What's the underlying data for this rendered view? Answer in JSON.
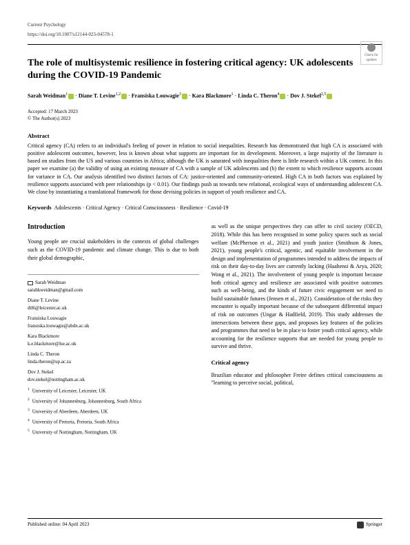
{
  "meta": {
    "journal": "Current Psychology",
    "doi": "https://doi.org/10.1007/s12144-023-04578-1"
  },
  "checkUpdates": {
    "label": "Check for updates"
  },
  "title": "The role of multisystemic resilience in fostering critical agency: UK adolescents during the COVID-19 Pandemic",
  "authors": {
    "a1": {
      "name": "Sarah Weidman",
      "sup": "1"
    },
    "a2": {
      "name": "Diane T. Levine",
      "sup": "1,2"
    },
    "a3": {
      "name": "Fransiska Louwagie",
      "sup": "3"
    },
    "a4": {
      "name": "Kara Blackmore",
      "sup": "1"
    },
    "a5": {
      "name": "Linda C. Theron",
      "sup": "4"
    },
    "a6": {
      "name": "Dov J. Stekel",
      "sup": "2,5"
    }
  },
  "dates": {
    "accepted": "Accepted: 17 March 2023",
    "copyright": "© The Author(s) 2023"
  },
  "abstractHead": "Abstract",
  "abstractBody": "Critical agency (CA) refers to an individual's feeling of power in relation to social inequalities. Research has demonstrated that high CA is associated with positive adolescent outcomes, however, less is known about what supports are important for its development. Moreover, a large majority of the literature is based on studies from the US and various countries in Africa; although the UK is saturated with inequalities there is little research within a UK context. In this paper we examine (a) the validity of using an existing measure of CA with a sample of UK adolescents and (b) the extent to which resilience supports account for variance in CA. Our analysis identified two distinct factors of CA: justice-oriented and community-oriented. High CA in both factors was explained by resilience supports associated with peer relationships (p < 0.01). Our findings push us towards new relational, ecological ways of understanding adolescent CA. We close by instantiating a translational framework for those devising policies in support of youth resilience and CA.",
  "keywordsLabel": "Keywords",
  "keywords": "Adolescents · Critical Agency · Critical Consciousness · Resilience · Covid-19",
  "introHead": "Introduction",
  "introPara1": "Young people are crucial stakeholders in the contexts of global challenges such as the COVID-19 pandemic and climate change. This is due to both their global demographic,",
  "introPara2": "as well as the unique perspectives they can offer to civil society (OECD, 2018). While this has been recognised in some policy spaces such as social welfare (McPherson et al., 2021) and youth justice (Smithson & Jones, 2021), young people's critical, agentic, and equitable involvement in the design and implementation of programmes intended to address the impacts of risk on their day-to-day lives are currently lacking (Haahensi & Arya, 2020; Wong et al., 2021). The involvement of young people is important because both critical agency and resilience are associated with positive outcomes such as well-being, and the kinds of future civic engagement we need to build sustainable futures (Jensen et al., 2021). Consideration of the risks they encounter is equally important because of the subsequent differential impact of risk on outcomes (Ungar & Hadfield, 2019). This study addresses the intersections between these gaps, and proposes key features of the policies and programmes that need to be in place to foster youth critical agency, while accounting for the resilience supports that are needed for young people to survive and thrive.",
  "caHead": "Critical agency",
  "caPara": "Brazilian educator and philosopher Freire defines critical consciousness as \"learning to perceive social, political,",
  "correspondence": {
    "c1": {
      "name": "Sarah Weidman",
      "email": "sarahkweidman@gmail.com"
    },
    "c2": {
      "name": "Diane T. Levine",
      "email": "dtl6@leicester.ac.uk"
    },
    "c3": {
      "name": "Fransiska Louwagie",
      "email": "fransiska.louwagie@abdn.ac.uk"
    },
    "c4": {
      "name": "Kara Blackmore",
      "email": "k.e.blackmore@lse.ac.uk"
    },
    "c5": {
      "name": "Linda C. Theron",
      "email": "linda.theron@up.ac.za"
    },
    "c6": {
      "name": "Dov J. Stekel",
      "email": "dov.stekel@nottingham.ac.uk"
    }
  },
  "affiliations": {
    "f1": "University of Leicester, Leicester, UK",
    "f2": "University of Johannesburg, Johannesburg, South Africa",
    "f3": "University of Aberdeen, Aberdeen, UK",
    "f4": "University of Pretoria, Pretoria, South Africa",
    "f5": "University of Nottingham, Nottingham, UK"
  },
  "footer": {
    "published": "Published online: 04 April 2023",
    "publisher": "Springer"
  }
}
